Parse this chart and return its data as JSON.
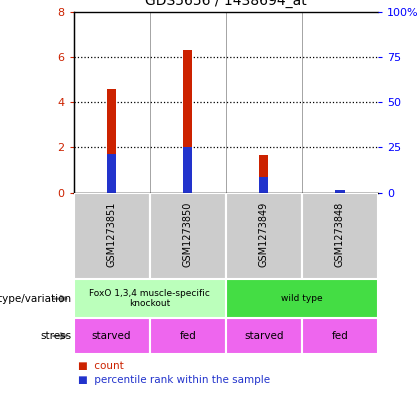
{
  "title": "GDS5656 / 1438694_at",
  "samples": [
    "GSM1273851",
    "GSM1273850",
    "GSM1273849",
    "GSM1273848"
  ],
  "red_values": [
    4.6,
    6.3,
    1.65,
    0.05
  ],
  "blue_values_scaled": [
    1.72,
    2.0,
    0.68,
    0.1
  ],
  "left_ylim": [
    0,
    8
  ],
  "left_yticks": [
    0,
    2,
    4,
    6,
    8
  ],
  "right_yticks": [
    0,
    25,
    50,
    75,
    100
  ],
  "right_yticklabels": [
    "0",
    "25",
    "50",
    "75",
    "100%"
  ],
  "bar_width": 0.12,
  "red_color": "#cc2200",
  "blue_color": "#2233cc",
  "genotype_label": "genotype/variation",
  "stress_label": "stress",
  "genotype_groups": [
    {
      "label": "FoxO 1,3,4 muscle-specific\nknockout",
      "cols": [
        0,
        1
      ],
      "color": "#bbffbb"
    },
    {
      "label": "wild type",
      "cols": [
        2,
        3
      ],
      "color": "#44dd44"
    }
  ],
  "stress_values": [
    "starved",
    "fed",
    "starved",
    "fed"
  ],
  "stress_color": "#ee66ee",
  "bg_color": "#ffffff",
  "legend_count_label": "count",
  "legend_pct_label": "percentile rank within the sample",
  "sample_bg_color": "#cccccc",
  "divider_color": "#ffffff"
}
